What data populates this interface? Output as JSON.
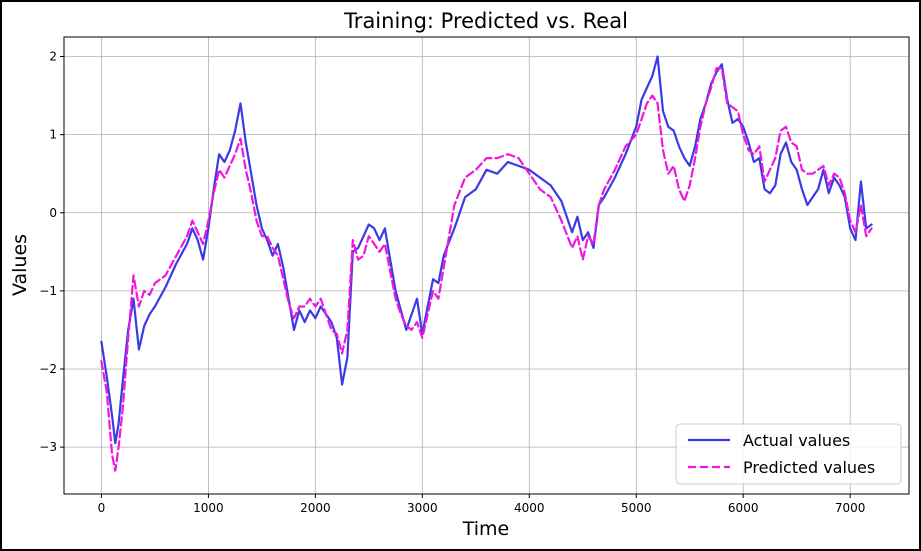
{
  "chart_data": {
    "type": "line",
    "title": "Training: Predicted vs. Real",
    "xlabel": "Time",
    "ylabel": "Values",
    "xlim": [
      -350,
      7550
    ],
    "ylim": [
      -3.6,
      2.25
    ],
    "xticks": [
      0,
      1000,
      2000,
      3000,
      4000,
      5000,
      6000,
      7000
    ],
    "yticks": [
      -3,
      -2,
      -1,
      0,
      1,
      2
    ],
    "ytick_labels": [
      "−3",
      "−2",
      "−1",
      "0",
      "1",
      "2"
    ],
    "grid": true,
    "legend_position": "bottom-right",
    "series": [
      {
        "name": "Actual values",
        "color": "#3a3ae6",
        "style": "solid",
        "x": [
          0,
          50,
          100,
          130,
          160,
          200,
          250,
          300,
          350,
          400,
          450,
          500,
          600,
          700,
          800,
          850,
          900,
          950,
          1000,
          1050,
          1100,
          1150,
          1200,
          1250,
          1300,
          1350,
          1400,
          1450,
          1500,
          1550,
          1600,
          1650,
          1700,
          1750,
          1800,
          1850,
          1900,
          1950,
          2000,
          2050,
          2100,
          2150,
          2200,
          2250,
          2300,
          2350,
          2400,
          2450,
          2500,
          2550,
          2600,
          2650,
          2700,
          2750,
          2800,
          2850,
          2900,
          2950,
          3000,
          3050,
          3100,
          3150,
          3200,
          3300,
          3400,
          3500,
          3600,
          3700,
          3800,
          3900,
          4000,
          4100,
          4200,
          4300,
          4400,
          4450,
          4500,
          4550,
          4600,
          4650,
          4700,
          4800,
          4900,
          5000,
          5050,
          5100,
          5150,
          5200,
          5250,
          5300,
          5350,
          5400,
          5450,
          5500,
          5550,
          5600,
          5650,
          5700,
          5750,
          5800,
          5850,
          5900,
          5950,
          6000,
          6050,
          6100,
          6150,
          6200,
          6250,
          6300,
          6350,
          6400,
          6450,
          6500,
          6550,
          6600,
          6650,
          6700,
          6750,
          6800,
          6850,
          6900,
          6950,
          7000,
          7050,
          7100,
          7150,
          7200
        ],
        "y": [
          -1.65,
          -2.1,
          -2.6,
          -2.95,
          -2.7,
          -2.15,
          -1.5,
          -1.1,
          -1.75,
          -1.45,
          -1.3,
          -1.2,
          -0.95,
          -0.65,
          -0.4,
          -0.2,
          -0.35,
          -0.6,
          -0.2,
          0.3,
          0.75,
          0.65,
          0.8,
          1.05,
          1.4,
          0.9,
          0.5,
          0.1,
          -0.2,
          -0.35,
          -0.55,
          -0.4,
          -0.7,
          -1.1,
          -1.5,
          -1.25,
          -1.4,
          -1.25,
          -1.35,
          -1.2,
          -1.3,
          -1.4,
          -1.6,
          -2.2,
          -1.85,
          -0.5,
          -0.45,
          -0.3,
          -0.15,
          -0.2,
          -0.35,
          -0.2,
          -0.6,
          -1.0,
          -1.25,
          -1.5,
          -1.3,
          -1.1,
          -1.55,
          -1.2,
          -0.85,
          -0.9,
          -0.55,
          -0.2,
          0.2,
          0.3,
          0.55,
          0.5,
          0.65,
          0.6,
          0.55,
          0.45,
          0.35,
          0.15,
          -0.25,
          -0.05,
          -0.35,
          -0.25,
          -0.45,
          0.1,
          0.2,
          0.45,
          0.75,
          1.1,
          1.45,
          1.6,
          1.75,
          2.0,
          1.3,
          1.1,
          1.05,
          0.85,
          0.7,
          0.6,
          0.85,
          1.2,
          1.4,
          1.65,
          1.8,
          1.9,
          1.45,
          1.15,
          1.2,
          1.1,
          0.9,
          0.65,
          0.7,
          0.3,
          0.25,
          0.35,
          0.75,
          0.9,
          0.65,
          0.55,
          0.3,
          0.1,
          0.2,
          0.3,
          0.55,
          0.25,
          0.45,
          0.35,
          0.2,
          -0.2,
          -0.35,
          0.4,
          -0.2,
          -0.15
        ],
        "x_detail": [
          0,
          50,
          100,
          130,
          160,
          200
        ],
        "y_detail": [
          -1.65,
          -2.1,
          -2.6,
          -2.95,
          -2.7,
          -2.15
        ]
      },
      {
        "name": "Predicted values",
        "color": "#f016e0",
        "style": "dashed",
        "x": [
          0,
          50,
          100,
          130,
          160,
          200,
          250,
          300,
          350,
          400,
          450,
          500,
          600,
          700,
          800,
          850,
          900,
          950,
          1000,
          1050,
          1100,
          1150,
          1200,
          1250,
          1300,
          1350,
          1400,
          1450,
          1500,
          1550,
          1600,
          1650,
          1700,
          1750,
          1800,
          1850,
          1900,
          1950,
          2000,
          2050,
          2100,
          2150,
          2200,
          2250,
          2300,
          2350,
          2400,
          2450,
          2500,
          2550,
          2600,
          2650,
          2700,
          2750,
          2800,
          2850,
          2900,
          2950,
          3000,
          3050,
          3100,
          3150,
          3200,
          3300,
          3400,
          3500,
          3600,
          3700,
          3800,
          3900,
          4000,
          4100,
          4200,
          4300,
          4400,
          4450,
          4500,
          4550,
          4600,
          4650,
          4700,
          4800,
          4900,
          5000,
          5050,
          5100,
          5150,
          5200,
          5250,
          5300,
          5350,
          5400,
          5450,
          5500,
          5550,
          5600,
          5650,
          5700,
          5750,
          5800,
          5850,
          5900,
          5950,
          6000,
          6050,
          6100,
          6150,
          6200,
          6250,
          6300,
          6350,
          6400,
          6450,
          6500,
          6550,
          6600,
          6650,
          6700,
          6750,
          6800,
          6850,
          6900,
          6950,
          7000,
          7050,
          7100,
          7150,
          7200
        ],
        "y": [
          -1.9,
          -2.3,
          -3.1,
          -3.3,
          -3.0,
          -2.5,
          -1.6,
          -0.8,
          -1.2,
          -1.0,
          -1.05,
          -0.9,
          -0.8,
          -0.55,
          -0.3,
          -0.1,
          -0.25,
          -0.4,
          -0.1,
          0.25,
          0.55,
          0.45,
          0.6,
          0.75,
          0.95,
          0.55,
          0.25,
          -0.1,
          -0.3,
          -0.3,
          -0.45,
          -0.55,
          -0.85,
          -1.15,
          -1.35,
          -1.2,
          -1.2,
          -1.1,
          -1.2,
          -1.1,
          -1.3,
          -1.5,
          -1.55,
          -1.8,
          -1.5,
          -0.35,
          -0.6,
          -0.55,
          -0.3,
          -0.4,
          -0.5,
          -0.4,
          -0.75,
          -1.1,
          -1.3,
          -1.45,
          -1.5,
          -1.4,
          -1.6,
          -1.3,
          -1.0,
          -1.1,
          -0.7,
          0.1,
          0.45,
          0.55,
          0.7,
          0.7,
          0.75,
          0.7,
          0.5,
          0.3,
          0.2,
          -0.1,
          -0.45,
          -0.3,
          -0.6,
          -0.3,
          -0.4,
          0.1,
          0.3,
          0.55,
          0.85,
          1.0,
          1.2,
          1.4,
          1.5,
          1.4,
          0.8,
          0.5,
          0.6,
          0.3,
          0.15,
          0.35,
          0.7,
          1.1,
          1.4,
          1.6,
          1.85,
          1.85,
          1.4,
          1.35,
          1.3,
          1.0,
          0.8,
          0.75,
          0.85,
          0.4,
          0.55,
          0.7,
          1.05,
          1.1,
          0.9,
          0.85,
          0.55,
          0.5,
          0.5,
          0.55,
          0.6,
          0.35,
          0.5,
          0.45,
          0.25,
          -0.1,
          -0.25,
          0.1,
          -0.3,
          -0.2
        ]
      }
    ]
  }
}
